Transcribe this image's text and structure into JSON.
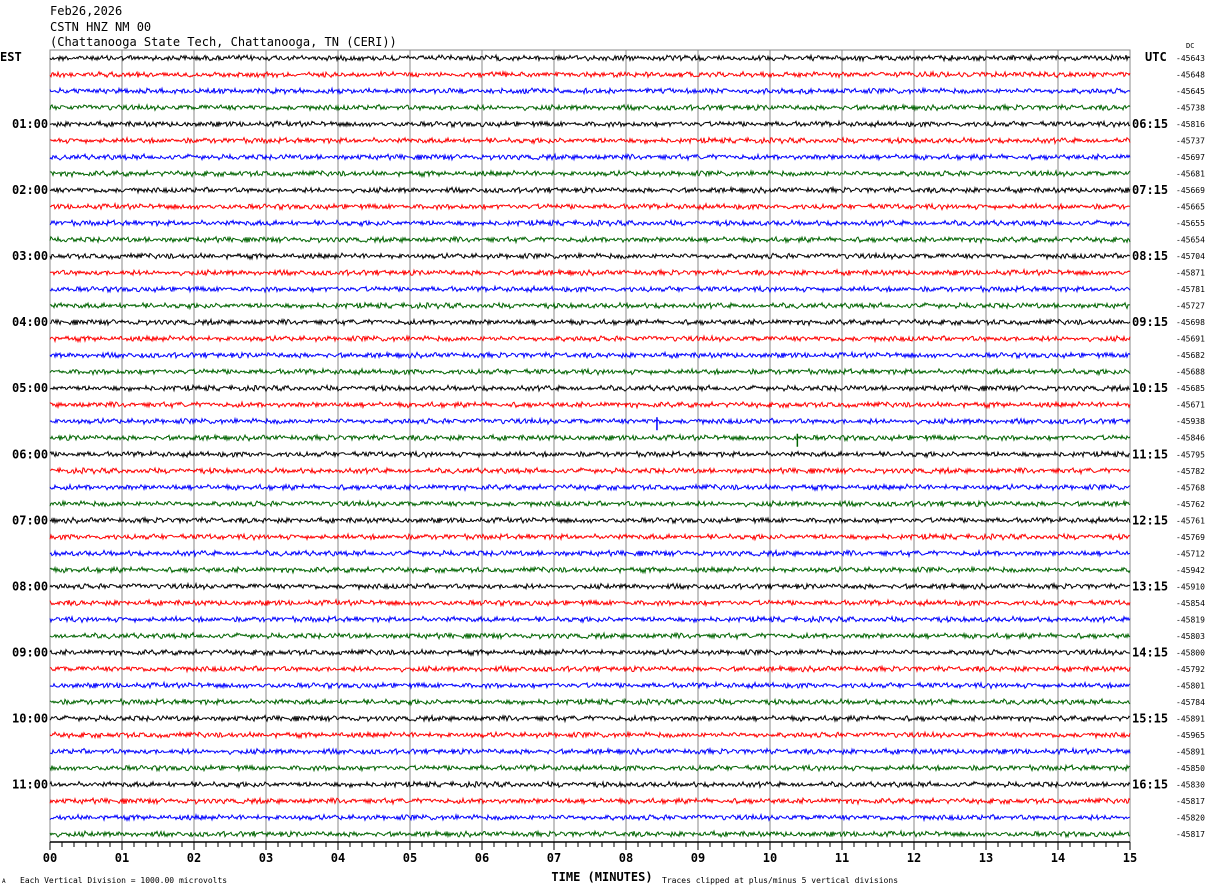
{
  "header": {
    "date": "Feb26,2026",
    "station": "CSTN HNZ NM 00",
    "location": "(Chattanooga State Tech, Chattanooga, TN (CERI))"
  },
  "chart_data": {
    "type": "line",
    "subtype": "helicorder",
    "left_axis_title": "EST",
    "right_axis_title": "UTC",
    "dc_title": "DC",
    "left_hour_labels": [
      "01:00",
      "02:00",
      "03:00",
      "04:00",
      "05:00",
      "06:00",
      "07:00",
      "08:00",
      "09:00",
      "10:00",
      "11:00"
    ],
    "right_hour_labels": [
      "06:15",
      "07:15",
      "08:15",
      "09:15",
      "10:15",
      "11:15",
      "12:15",
      "13:15",
      "14:15",
      "15:15",
      "16:15"
    ],
    "dc_offsets": [
      "-45643",
      "-45648",
      "-45645",
      "-45738",
      "-45816",
      "-45737",
      "-45697",
      "-45681",
      "-45669",
      "-45665",
      "-45655",
      "-45654",
      "-45704",
      "-45871",
      "-45781",
      "-45727",
      "-45698",
      "-45691",
      "-45682",
      "-45688",
      "-45685",
      "-45671",
      "-45938",
      "-45846",
      "-45795",
      "-45782",
      "-45768",
      "-45762",
      "-45761",
      "-45769",
      "-45712",
      "-45942",
      "-45910",
      "-45854",
      "-45819",
      "-45803",
      "-45800",
      "-45792",
      "-45801",
      "-45784",
      "-45891",
      "-45965",
      "-45891",
      "-45850",
      "-45830",
      "-45817",
      "-45820",
      "-45817"
    ],
    "trace_colors": [
      "#000000",
      "#ff0000",
      "#0000ff",
      "#006400"
    ],
    "x_tick_labels": [
      "00",
      "01",
      "02",
      "03",
      "04",
      "05",
      "06",
      "07",
      "08",
      "09",
      "10",
      "11",
      "12",
      "13",
      "14",
      "15"
    ],
    "xlim": [
      0,
      15
    ],
    "xlabel": "TIME (MINUTES)",
    "grid": "vertical every minute",
    "events": [
      {
        "row": 22,
        "minute": 8.43
      },
      {
        "row": 23,
        "minute": 10.38
      }
    ],
    "footer_left": "Each Vertical Division = 1000.00 microvolts",
    "footer_right": "Traces clipped at plus/minus 5 vertical divisions",
    "corner_mark": "A"
  }
}
